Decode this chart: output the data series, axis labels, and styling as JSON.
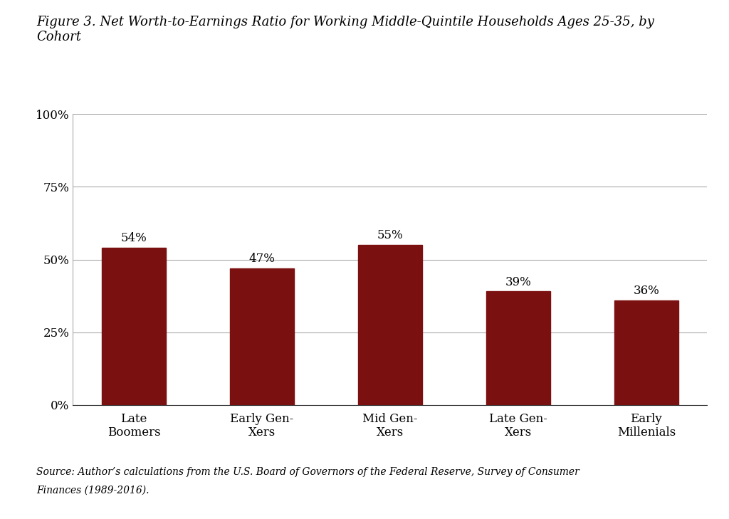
{
  "categories": [
    "Late\nBoomers",
    "Early Gen-\nXers",
    "Mid Gen-\nXers",
    "Late Gen-\nXers",
    "Early\nMillenials"
  ],
  "values": [
    0.54,
    0.47,
    0.55,
    0.39,
    0.36
  ],
  "labels": [
    "54%",
    "47%",
    "55%",
    "39%",
    "36%"
  ],
  "bar_color": "#7B1010",
  "ylim": [
    0,
    1.0
  ],
  "yticks": [
    0,
    0.25,
    0.5,
    0.75,
    1.0
  ],
  "ytick_labels": [
    "0%",
    "25%",
    "50%",
    "75%",
    "100%"
  ],
  "background_color": "#ffffff",
  "grid_color": "#aaaaaa",
  "title_fontsize": 13,
  "label_fontsize": 12,
  "tick_fontsize": 12,
  "source_fontsize": 10,
  "bar_width": 0.5,
  "title_text": "Figure 3. Net Worth-to-Earnings Ratio for Working Middle-Quintile Households Ages 25-35, by\nCohort",
  "source_line1": "Source: Author’s calculations from the U.S. Board of Governors of the Federal Reserve, Survey of Consumer",
  "source_line2": "Finances (1989-2016)."
}
